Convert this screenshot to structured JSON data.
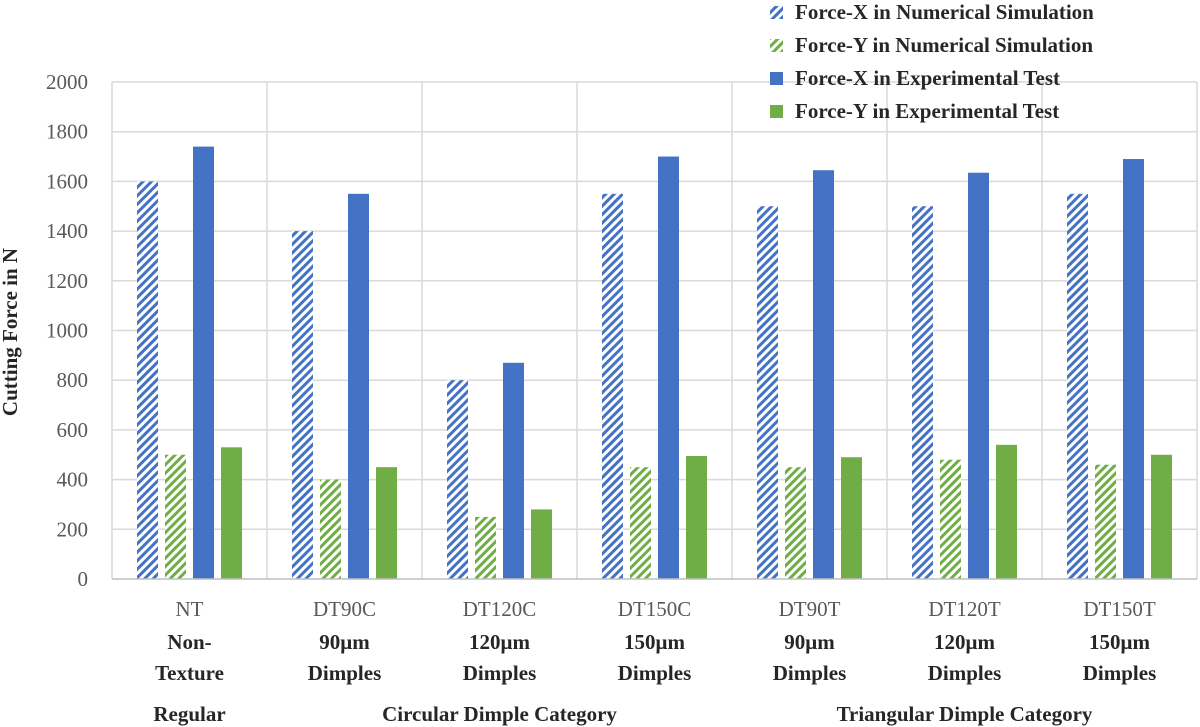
{
  "chart_data": {
    "type": "bar",
    "ylabel": "Cutting Force in N",
    "ylim": [
      0,
      2000
    ],
    "yticks": [
      0,
      200,
      400,
      600,
      800,
      1000,
      1200,
      1400,
      1600,
      1800,
      2000
    ],
    "grid": true,
    "legend_position": "top-right",
    "categories": [
      "NT",
      "DT90C",
      "DT120C",
      "DT150C",
      "DT90T",
      "DT120T",
      "DT150T"
    ],
    "category_sublabels": [
      [
        "Non-",
        "Texture"
      ],
      [
        "90μm",
        "Dimples"
      ],
      [
        "120μm",
        "Dimples"
      ],
      [
        "150μm",
        "Dimples"
      ],
      [
        "90μm",
        "Dimples"
      ],
      [
        "120μm",
        "Dimples"
      ],
      [
        "150μm",
        "Dimples"
      ]
    ],
    "groups": [
      {
        "label": "Regular",
        "categories": [
          0
        ]
      },
      {
        "label": "Circular Dimple Category",
        "categories": [
          1,
          2,
          3
        ]
      },
      {
        "label": "Triangular Dimple Category",
        "categories": [
          4,
          5,
          6
        ]
      }
    ],
    "series": [
      {
        "name": "Force-X in Numerical Simulation",
        "color": "#4472c4",
        "pattern": "hatched",
        "values": [
          1600,
          1400,
          800,
          1550,
          1500,
          1500,
          1550
        ]
      },
      {
        "name": "Force-Y in Numerical Simulation",
        "color": "#70ad47",
        "pattern": "hatched",
        "values": [
          500,
          400,
          250,
          450,
          450,
          480,
          460
        ]
      },
      {
        "name": "Force-X in Experimental Test",
        "color": "#4472c4",
        "pattern": "solid",
        "values": [
          1740,
          1550,
          870,
          1700,
          1645,
          1635,
          1690
        ]
      },
      {
        "name": "Force-Y in Experimental Test",
        "color": "#70ad47",
        "pattern": "solid",
        "values": [
          530,
          450,
          280,
          495,
          490,
          540,
          500
        ]
      }
    ]
  }
}
